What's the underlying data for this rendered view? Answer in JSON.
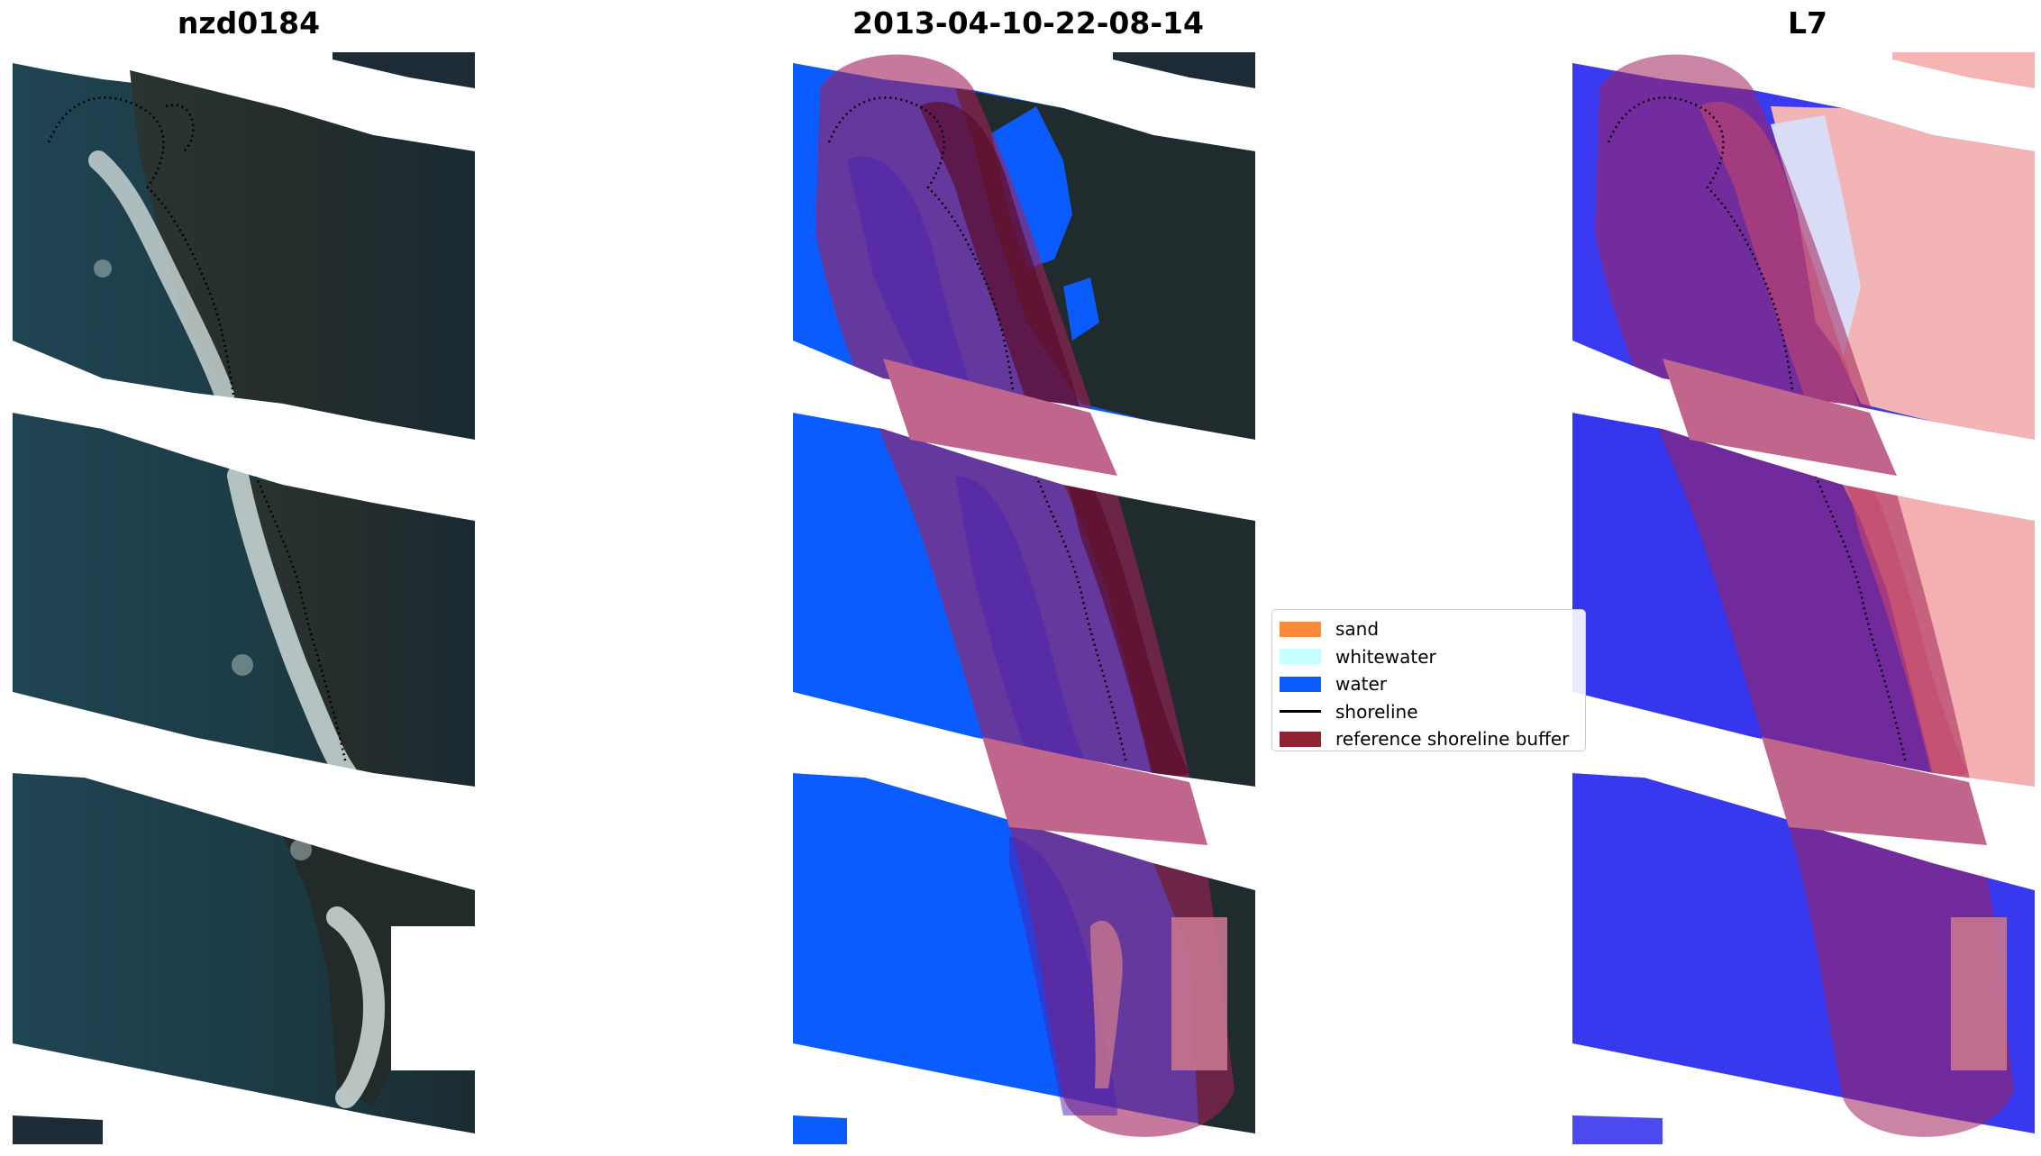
{
  "panels": [
    {
      "title": "nzd0184"
    },
    {
      "title": "2013-04-10-22-08-14"
    },
    {
      "title": "L7"
    }
  ],
  "legend": {
    "items": [
      {
        "label": "sand",
        "color": "#f98b3b",
        "kind": "patch"
      },
      {
        "label": "whitewater",
        "color": "#c6ffff",
        "kind": "patch"
      },
      {
        "label": "water",
        "color": "#0a5cff",
        "kind": "patch"
      },
      {
        "label": "shoreline",
        "color": "#000000",
        "kind": "line"
      },
      {
        "label": "reference shoreline buffer",
        "color": "#8e2432",
        "kind": "patch"
      }
    ]
  },
  "colors": {
    "rgb_water": "#1d3a49",
    "rgb_land": "#1e2a2a",
    "rgb_surf": "#cfd8d6",
    "class_water": "#0a5cff",
    "buffer_overlay": "#a0205a",
    "index_water": "#3a3af0",
    "index_land": "#f5a0a0"
  }
}
